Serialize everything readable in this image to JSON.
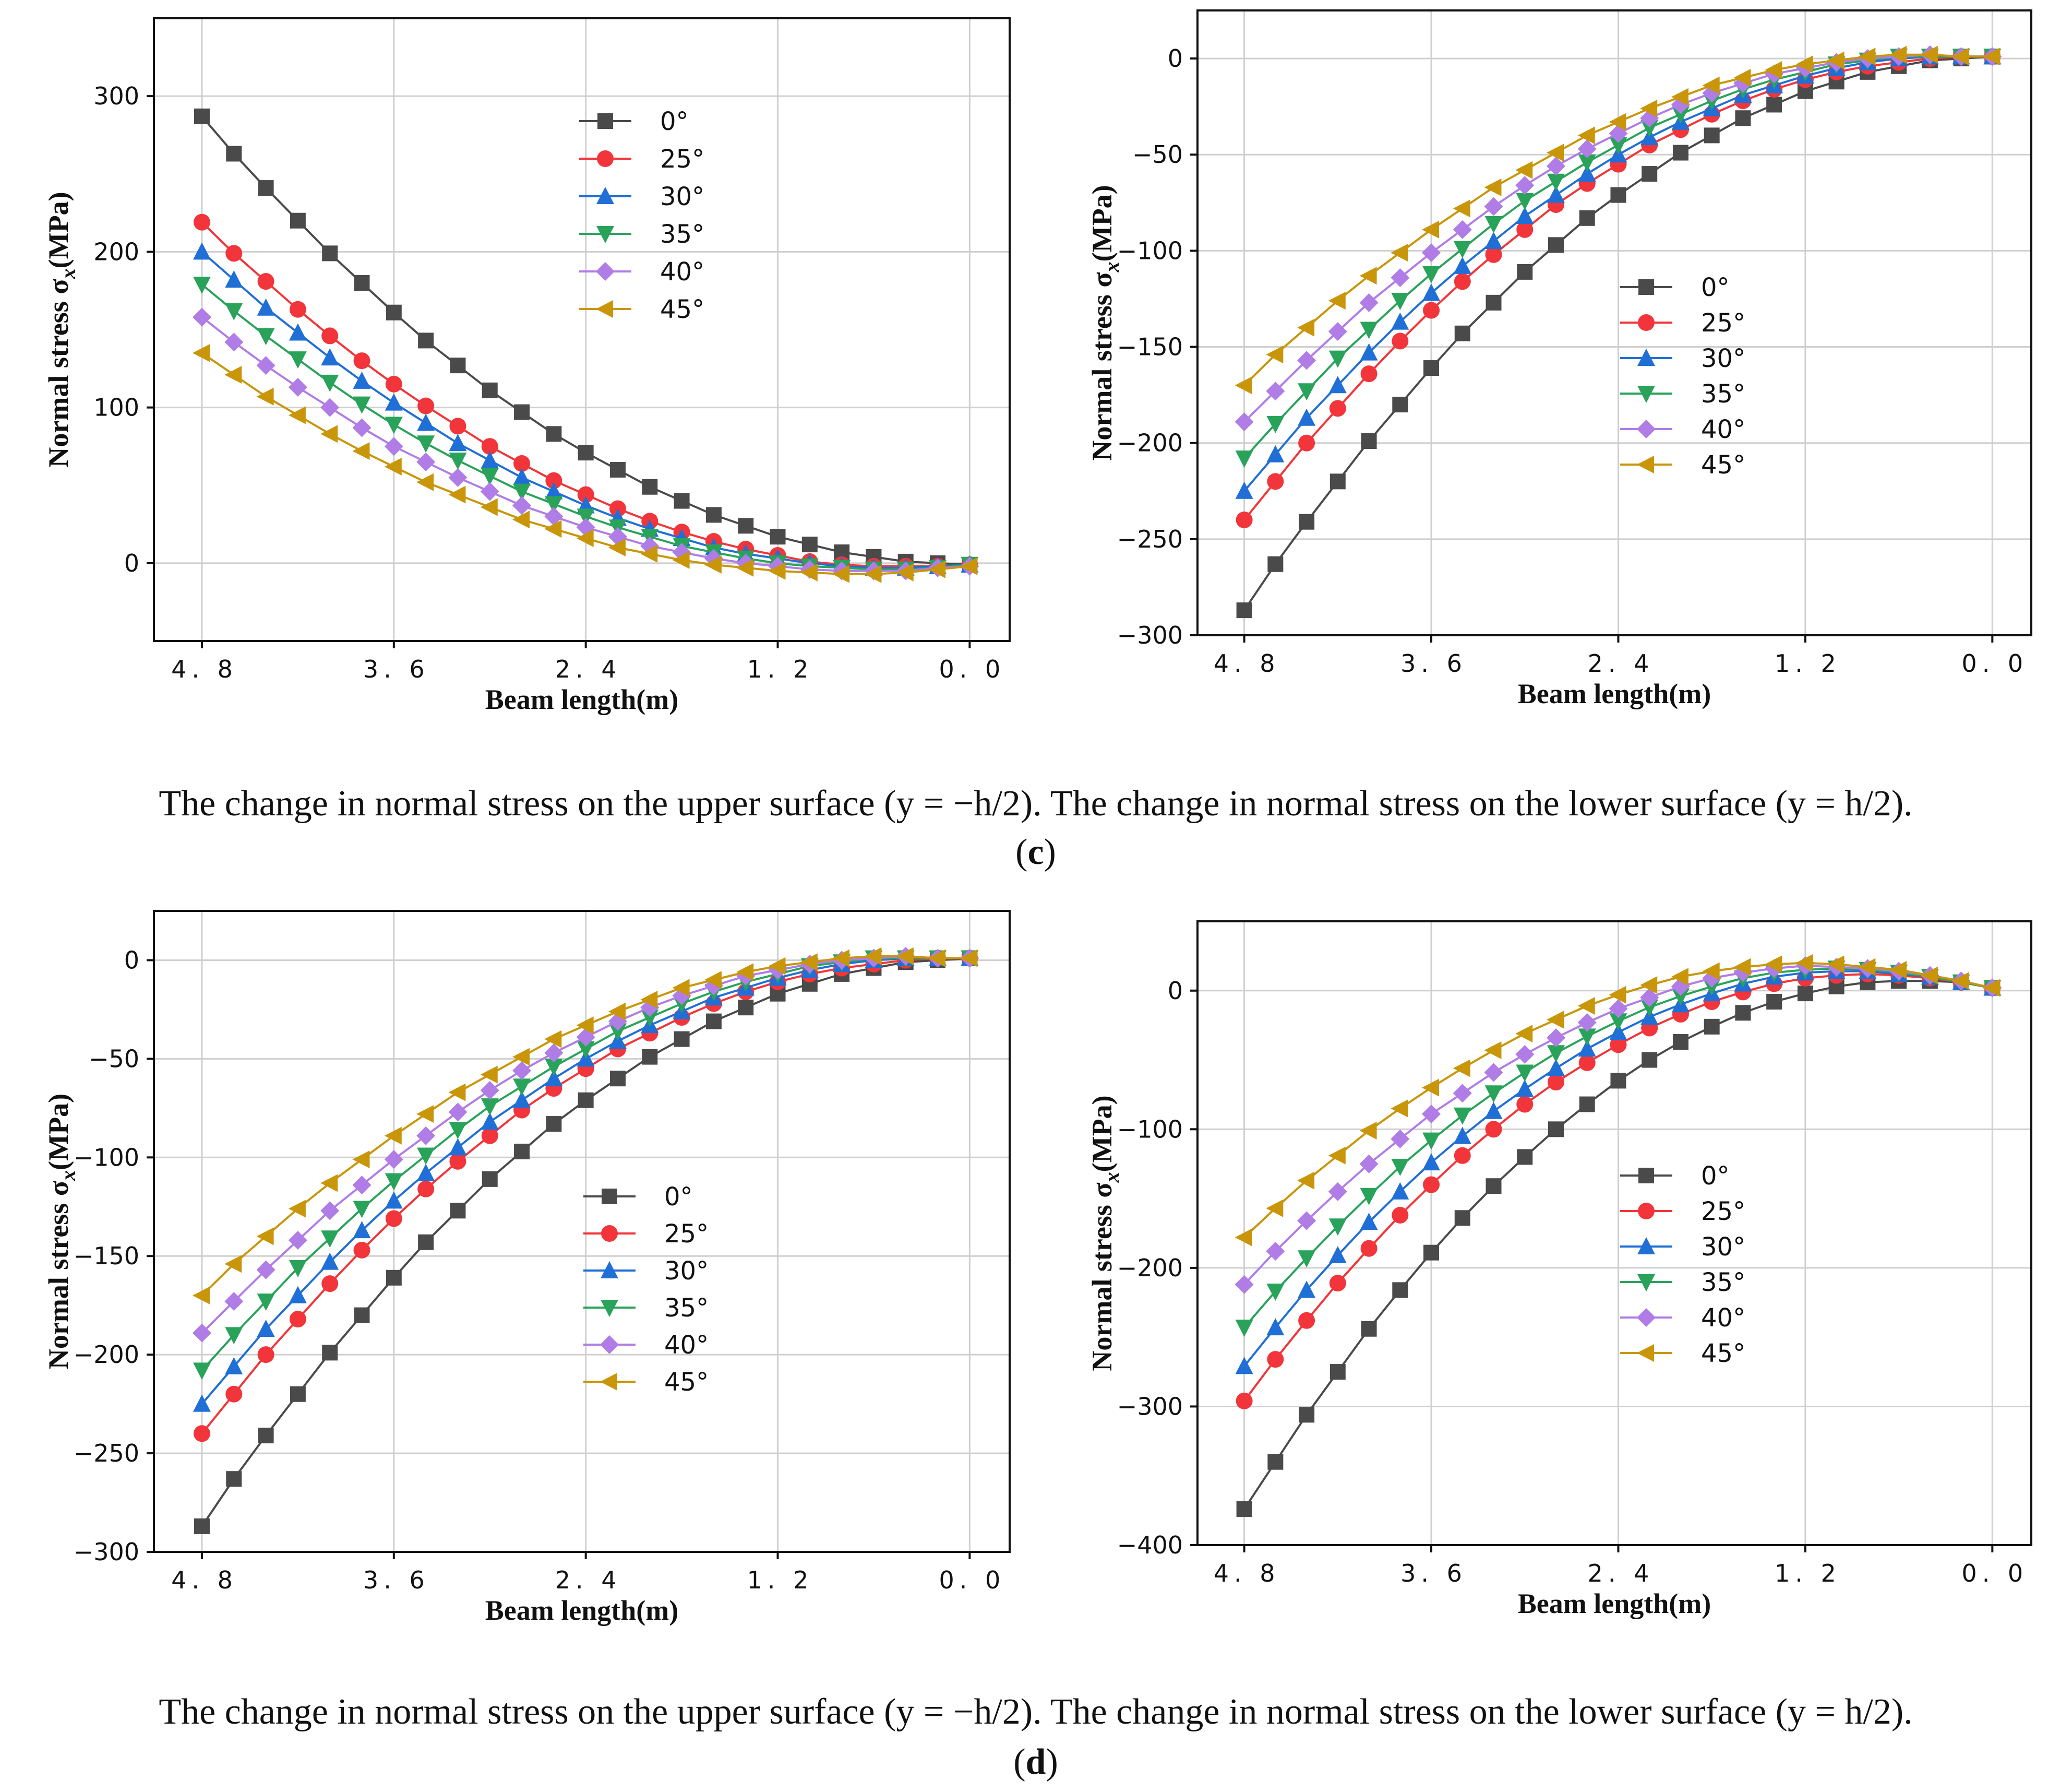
{
  "colors": {
    "0°": "#4a4a4a",
    "25°": "#f2353a",
    "30°": "#1f6fd6",
    "35°": "#2aa35a",
    "40°": "#b07ce6",
    "45°": "#c9960a"
  },
  "markers": {
    "0°": "square",
    "25°": "circle",
    "30°": "triangle-up",
    "35°": "triangle-down",
    "40°": "diamond",
    "45°": "triangle-left"
  },
  "captions": {
    "row_c": "The change in normal stress on the upper surface (y = −h/2). The change in normal stress on the lower surface (y = h/2).",
    "label_c_open": "(",
    "label_c": "c",
    "label_c_close": ")",
    "row_d": "The change in normal stress on the upper surface (y = −h/2). The change in normal stress on the lower surface (y = h/2).",
    "label_d_open": "(",
    "label_d": "d",
    "label_d_close": ")"
  },
  "chart_data": [
    {
      "type": "line",
      "panel": "c-upper",
      "xlabel": "Beam length(m)",
      "ylabel_main": "Normal stress  σ",
      "ylabel_sub": "x",
      "ylabel_unit": "(MPa)",
      "xlim": [
        5.1,
        -0.25
      ],
      "ylim": [
        -50,
        350
      ],
      "xticks": [
        4.8,
        3.6,
        2.4,
        1.2,
        0.0
      ],
      "xtick_labels": [
        "4. 8",
        "3. 6",
        "2. 4",
        "1. 2",
        "0. 0"
      ],
      "yticks": [
        0,
        100,
        200,
        300
      ],
      "ytick_labels": [
        "0",
        "100",
        "200",
        "300"
      ],
      "legend_position": "top-center",
      "x": [
        4.8,
        4.6,
        4.4,
        4.2,
        4.0,
        3.8,
        3.6,
        3.4,
        3.2,
        3.0,
        2.8,
        2.6,
        2.4,
        2.2,
        2.0,
        1.8,
        1.6,
        1.4,
        1.2,
        1.0,
        0.8,
        0.6,
        0.4,
        0.2,
        0.0
      ],
      "series": [
        {
          "name": "0°",
          "values": [
            287,
            263,
            241,
            220,
            199,
            180,
            161,
            143,
            127,
            111,
            97,
            83,
            71,
            60,
            49,
            40,
            31,
            24,
            17,
            12,
            7,
            4,
            1,
            0,
            -1
          ]
        },
        {
          "name": "25°",
          "values": [
            219,
            199,
            181,
            163,
            146,
            130,
            115,
            101,
            88,
            75,
            64,
            53,
            44,
            35,
            27,
            20,
            14,
            9,
            5,
            1,
            -1,
            -2,
            -2,
            -2,
            -1
          ]
        },
        {
          "name": "30°",
          "values": [
            200,
            182,
            164,
            148,
            132,
            117,
            103,
            90,
            77,
            66,
            55,
            46,
            37,
            29,
            22,
            16,
            10,
            6,
            3,
            0,
            -2,
            -3,
            -3,
            -2,
            -1
          ]
        },
        {
          "name": "35°",
          "values": [
            179,
            162,
            146,
            131,
            116,
            102,
            89,
            77,
            66,
            56,
            46,
            38,
            30,
            23,
            17,
            11,
            7,
            3,
            0,
            -2,
            -3,
            -4,
            -4,
            -3,
            -1
          ]
        },
        {
          "name": "40°",
          "values": [
            158,
            142,
            127,
            113,
            100,
            87,
            75,
            65,
            55,
            46,
            37,
            30,
            23,
            17,
            11,
            7,
            3,
            0,
            -2,
            -4,
            -5,
            -5,
            -5,
            -3,
            -2
          ]
        },
        {
          "name": "45°",
          "values": [
            135,
            121,
            107,
            95,
            83,
            72,
            62,
            52,
            44,
            36,
            28,
            22,
            16,
            10,
            6,
            2,
            -1,
            -3,
            -5,
            -6,
            -7,
            -7,
            -6,
            -4,
            -2
          ]
        }
      ]
    },
    {
      "type": "line",
      "panel": "c-lower",
      "xlabel": "Beam length(m)",
      "ylabel_main": "Normal stress  σ",
      "ylabel_sub": "x",
      "ylabel_unit": "(MPa)",
      "xlim": [
        5.1,
        -0.25
      ],
      "ylim": [
        -300,
        25
      ],
      "xticks": [
        4.8,
        3.6,
        2.4,
        1.2,
        0.0
      ],
      "xtick_labels": [
        "4. 8",
        "3. 6",
        "2. 4",
        "1. 2",
        "0. 0"
      ],
      "yticks": [
        0,
        -50,
        -100,
        -150,
        -200,
        -250,
        -300
      ],
      "ytick_labels": [
        "0",
        "−50",
        "−100",
        "−150",
        "−200",
        "−250",
        "−300"
      ],
      "legend_position": "center-right",
      "x": [
        4.8,
        4.6,
        4.4,
        4.2,
        4.0,
        3.8,
        3.6,
        3.4,
        3.2,
        3.0,
        2.8,
        2.6,
        2.4,
        2.2,
        2.0,
        1.8,
        1.6,
        1.4,
        1.2,
        1.0,
        0.8,
        0.6,
        0.4,
        0.2,
        0.0
      ],
      "series": [
        {
          "name": "0°",
          "values": [
            -287,
            -263,
            -241,
            -220,
            -199,
            -180,
            -161,
            -143,
            -127,
            -111,
            -97,
            -83,
            -71,
            -60,
            -49,
            -40,
            -31,
            -24,
            -17,
            -12,
            -7,
            -4,
            -1,
            0,
            1
          ]
        },
        {
          "name": "25°",
          "values": [
            -240,
            -220,
            -200,
            -182,
            -164,
            -147,
            -131,
            -116,
            -102,
            -89,
            -76,
            -65,
            -55,
            -45,
            -37,
            -29,
            -22,
            -16,
            -11,
            -7,
            -4,
            -2,
            0,
            1,
            1
          ]
        },
        {
          "name": "30°",
          "values": [
            -225,
            -206,
            -187,
            -170,
            -153,
            -137,
            -122,
            -108,
            -95,
            -82,
            -71,
            -60,
            -50,
            -41,
            -33,
            -26,
            -19,
            -14,
            -9,
            -5,
            -2,
            0,
            1,
            1,
            1
          ]
        },
        {
          "name": "35°",
          "values": [
            -208,
            -190,
            -173,
            -156,
            -141,
            -126,
            -112,
            -99,
            -86,
            -74,
            -64,
            -54,
            -45,
            -36,
            -29,
            -22,
            -16,
            -11,
            -7,
            -3,
            -1,
            1,
            1,
            1,
            1
          ]
        },
        {
          "name": "40°",
          "values": [
            -189,
            -173,
            -157,
            -142,
            -127,
            -114,
            -101,
            -89,
            -77,
            -66,
            -56,
            -47,
            -39,
            -31,
            -24,
            -18,
            -13,
            -8,
            -5,
            -2,
            0,
            1,
            2,
            1,
            1
          ]
        },
        {
          "name": "45°",
          "values": [
            -170,
            -154,
            -140,
            -126,
            -113,
            -101,
            -89,
            -78,
            -67,
            -58,
            -49,
            -40,
            -33,
            -26,
            -20,
            -14,
            -10,
            -6,
            -3,
            -1,
            1,
            2,
            2,
            1,
            1
          ]
        }
      ]
    },
    {
      "type": "line",
      "panel": "d-upper",
      "xlabel": "Beam length(m)",
      "ylabel_main": "Normal stress  σ",
      "ylabel_sub": "x",
      "ylabel_unit": "(MPa)",
      "xlim": [
        5.1,
        -0.25
      ],
      "ylim": [
        -300,
        25
      ],
      "xticks": [
        4.8,
        3.6,
        2.4,
        1.2,
        0.0
      ],
      "xtick_labels": [
        "4. 8",
        "3. 6",
        "2. 4",
        "1. 2",
        "0. 0"
      ],
      "yticks": [
        0,
        -50,
        -100,
        -150,
        -200,
        -250,
        -300
      ],
      "ytick_labels": [
        "0",
        "−50",
        "−100",
        "−150",
        "−200",
        "−250",
        "−300"
      ],
      "legend_position": "center-right",
      "x": [
        4.8,
        4.6,
        4.4,
        4.2,
        4.0,
        3.8,
        3.6,
        3.4,
        3.2,
        3.0,
        2.8,
        2.6,
        2.4,
        2.2,
        2.0,
        1.8,
        1.6,
        1.4,
        1.2,
        1.0,
        0.8,
        0.6,
        0.4,
        0.2,
        0.0
      ],
      "series": [
        {
          "name": "0°",
          "values": [
            -287,
            -263,
            -241,
            -220,
            -199,
            -180,
            -161,
            -143,
            -127,
            -111,
            -97,
            -83,
            -71,
            -60,
            -49,
            -40,
            -31,
            -24,
            -17,
            -12,
            -7,
            -4,
            -1,
            0,
            1
          ]
        },
        {
          "name": "25°",
          "values": [
            -240,
            -220,
            -200,
            -182,
            -164,
            -147,
            -131,
            -116,
            -102,
            -89,
            -76,
            -65,
            -55,
            -45,
            -37,
            -29,
            -22,
            -16,
            -11,
            -7,
            -4,
            -2,
            0,
            1,
            1
          ]
        },
        {
          "name": "30°",
          "values": [
            -225,
            -206,
            -187,
            -170,
            -153,
            -137,
            -122,
            -108,
            -95,
            -82,
            -71,
            -60,
            -50,
            -41,
            -33,
            -26,
            -19,
            -14,
            -9,
            -5,
            -2,
            0,
            1,
            1,
            1
          ]
        },
        {
          "name": "35°",
          "values": [
            -208,
            -190,
            -173,
            -156,
            -141,
            -126,
            -112,
            -99,
            -86,
            -74,
            -64,
            -54,
            -45,
            -36,
            -29,
            -22,
            -16,
            -11,
            -7,
            -3,
            -1,
            1,
            1,
            1,
            1
          ]
        },
        {
          "name": "40°",
          "values": [
            -189,
            -173,
            -157,
            -142,
            -127,
            -114,
            -101,
            -89,
            -77,
            -66,
            -56,
            -47,
            -39,
            -31,
            -24,
            -18,
            -13,
            -8,
            -5,
            -2,
            0,
            1,
            2,
            1,
            1
          ]
        },
        {
          "name": "45°",
          "values": [
            -170,
            -154,
            -140,
            -126,
            -113,
            -101,
            -89,
            -78,
            -67,
            -58,
            -49,
            -40,
            -33,
            -26,
            -20,
            -14,
            -10,
            -6,
            -3,
            -1,
            1,
            2,
            2,
            1,
            1
          ]
        }
      ]
    },
    {
      "type": "line",
      "panel": "d-lower",
      "xlabel": "Beam length(m)",
      "ylabel_main": "Normal stress  σ",
      "ylabel_sub": "x",
      "ylabel_unit": "(MPa)",
      "xlim": [
        5.1,
        -0.25
      ],
      "ylim": [
        -400,
        50
      ],
      "xticks": [
        4.8,
        3.6,
        2.4,
        1.2,
        0.0
      ],
      "xtick_labels": [
        "4. 8",
        "3. 6",
        "2. 4",
        "1. 2",
        "0. 0"
      ],
      "yticks": [
        0,
        -100,
        -200,
        -300,
        -400
      ],
      "ytick_labels": [
        "0",
        "−100",
        "−200",
        "−300",
        "−400"
      ],
      "legend_position": "center-right",
      "x": [
        4.8,
        4.6,
        4.4,
        4.2,
        4.0,
        3.8,
        3.6,
        3.4,
        3.2,
        3.0,
        2.8,
        2.6,
        2.4,
        2.2,
        2.0,
        1.8,
        1.6,
        1.4,
        1.2,
        1.0,
        0.8,
        0.6,
        0.4,
        0.2,
        0.0
      ],
      "series": [
        {
          "name": "0°",
          "values": [
            -374,
            -340,
            -306,
            -275,
            -244,
            -216,
            -189,
            -164,
            -141,
            -120,
            -100,
            -82,
            -65,
            -50,
            -37,
            -26,
            -16,
            -8,
            -2,
            3,
            6,
            7,
            7,
            6,
            2
          ]
        },
        {
          "name": "25°",
          "values": [
            -296,
            -266,
            -238,
            -211,
            -186,
            -162,
            -140,
            -119,
            -100,
            -82,
            -66,
            -52,
            -39,
            -27,
            -17,
            -8,
            -1,
            5,
            9,
            11,
            12,
            11,
            9,
            6,
            2
          ]
        },
        {
          "name": "30°",
          "values": [
            -271,
            -243,
            -216,
            -191,
            -167,
            -145,
            -124,
            -105,
            -87,
            -71,
            -56,
            -42,
            -30,
            -19,
            -10,
            -2,
            5,
            10,
            13,
            14,
            14,
            12,
            10,
            6,
            2
          ]
        },
        {
          "name": "35°",
          "values": [
            -243,
            -217,
            -193,
            -170,
            -148,
            -127,
            -108,
            -90,
            -74,
            -59,
            -45,
            -33,
            -22,
            -12,
            -4,
            3,
            9,
            13,
            15,
            16,
            15,
            13,
            10,
            6,
            2
          ]
        },
        {
          "name": "40°",
          "values": [
            -212,
            -188,
            -166,
            -145,
            -125,
            -107,
            -89,
            -74,
            -59,
            -46,
            -34,
            -23,
            -13,
            -5,
            3,
            9,
            13,
            16,
            18,
            17,
            16,
            14,
            11,
            7,
            2
          ]
        },
        {
          "name": "45°",
          "values": [
            -178,
            -157,
            -137,
            -119,
            -101,
            -85,
            -70,
            -56,
            -43,
            -31,
            -21,
            -11,
            -3,
            4,
            10,
            14,
            17,
            19,
            20,
            19,
            17,
            15,
            11,
            7,
            2
          ]
        }
      ]
    }
  ]
}
